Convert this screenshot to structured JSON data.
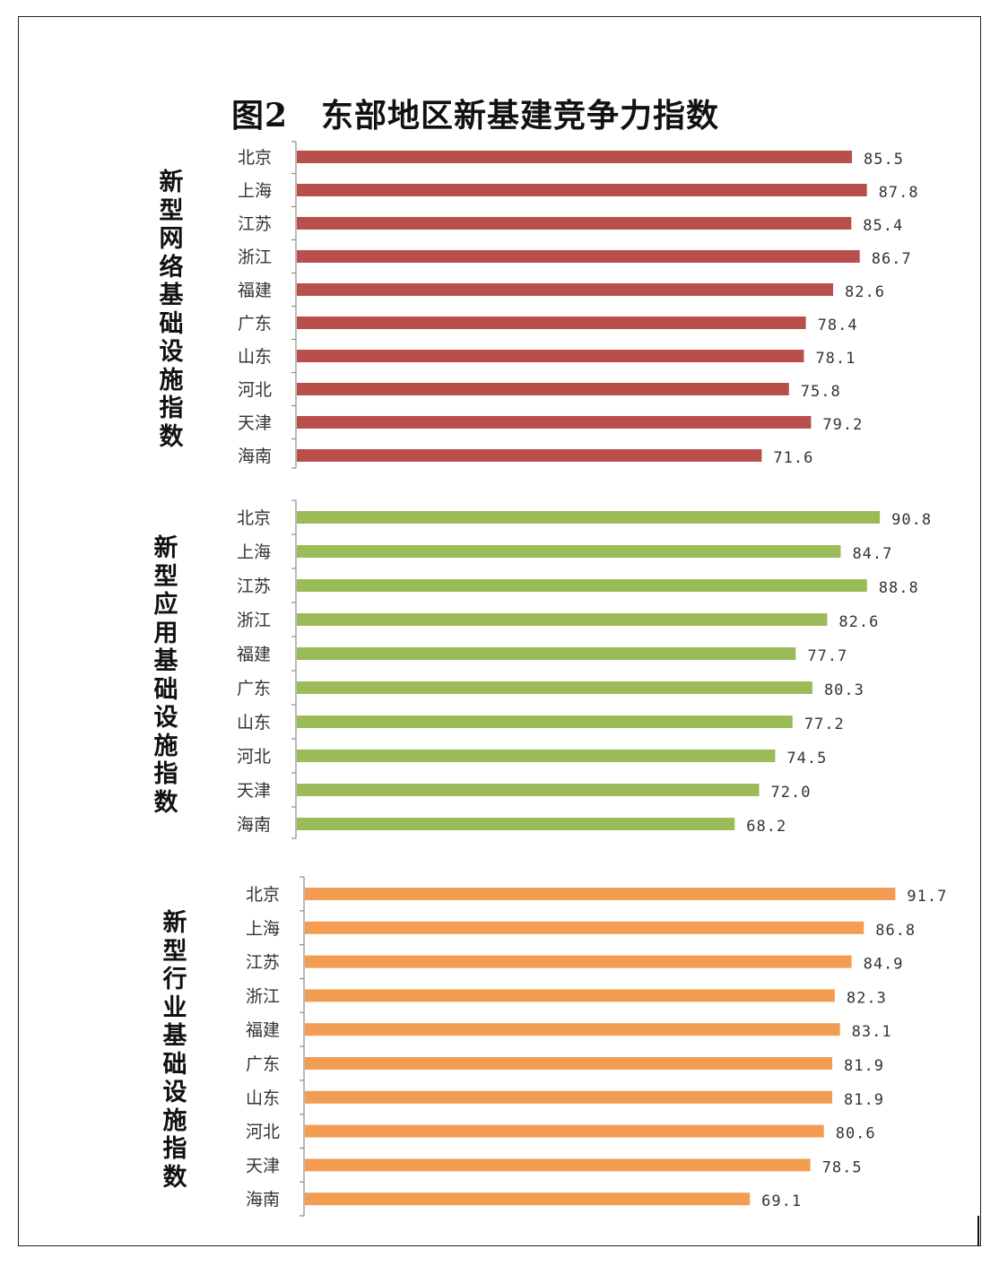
{
  "title": "图2　东部地区新基建竞争力指数",
  "chart_data": [
    {
      "type": "bar",
      "orientation": "horizontal",
      "label": "新型网络基础设施指数",
      "color": "#b94f4b",
      "categories": [
        "北京",
        "上海",
        "江苏",
        "浙江",
        "福建",
        "广东",
        "山东",
        "河北",
        "天津",
        "海南"
      ],
      "values": [
        85.5,
        87.8,
        85.4,
        86.7,
        82.6,
        78.4,
        78.1,
        75.8,
        79.2,
        71.6
      ],
      "data_labels": [
        "85.5",
        "87.8",
        "85.4",
        "86.7",
        "82.6",
        "78.4",
        "78.1",
        "75.8",
        "79.2",
        "71.6"
      ],
      "grid": false
    },
    {
      "type": "bar",
      "orientation": "horizontal",
      "label": "新型应用基础设施指数",
      "color": "#9bbb59",
      "categories": [
        "北京",
        "上海",
        "江苏",
        "浙江",
        "福建",
        "广东",
        "山东",
        "河北",
        "天津",
        "海南"
      ],
      "values": [
        90.8,
        84.7,
        88.8,
        82.6,
        77.7,
        80.3,
        77.2,
        74.5,
        72.0,
        68.2
      ],
      "data_labels": [
        "90.8",
        "84.7",
        "88.8",
        "82.6",
        "77.7",
        "80.3",
        "77.2",
        "74.5",
        "72.0",
        "68.2"
      ],
      "grid": false
    },
    {
      "type": "bar",
      "orientation": "horizontal",
      "label": "新型行业基础设施指数",
      "color": "#f29d51",
      "categories": [
        "北京",
        "上海",
        "江苏",
        "浙江",
        "福建",
        "广东",
        "山东",
        "河北",
        "天津",
        "海南"
      ],
      "values": [
        91.7,
        86.8,
        84.9,
        82.3,
        83.1,
        81.9,
        81.9,
        80.6,
        78.5,
        69.1
      ],
      "data_labels": [
        "91.7",
        "86.8",
        "84.9",
        "82.3",
        "83.1",
        "81.9",
        "81.9",
        "80.6",
        "78.5",
        "69.1"
      ],
      "grid": false
    }
  ]
}
